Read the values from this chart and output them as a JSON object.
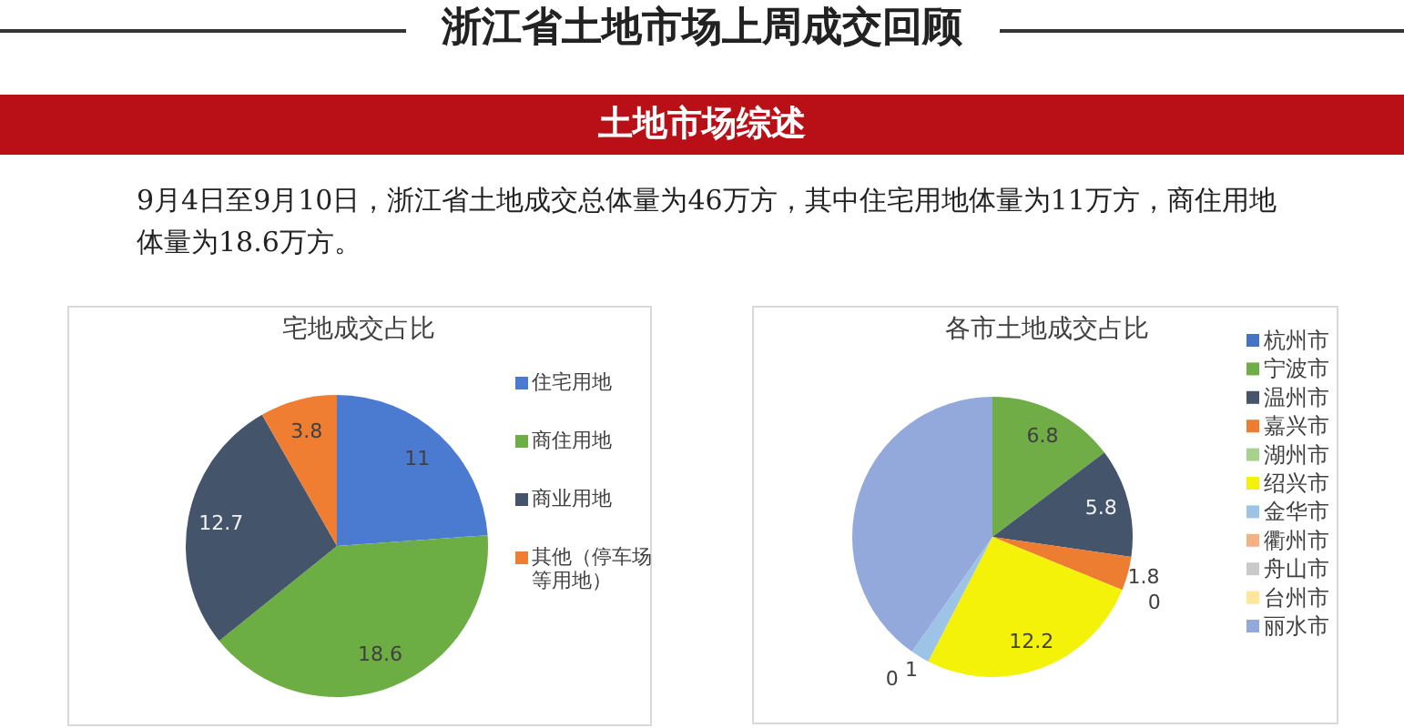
{
  "chart_data": [
    {
      "type": "other",
      "title": "浙江省土地市场上周成交回顾",
      "subtitle": "土地市场综述",
      "annotations": [
        "9月4日至9月10日，浙江省土地成交总体量为46万方，其中住宅用地体量为11万方，商住用地体量为18.6万方。"
      ]
    },
    {
      "type": "pie",
      "title": "宅地成交占比",
      "categories": [
        "住宅用地",
        "商住用地",
        "商业用地",
        "其他（停车场等用地）"
      ],
      "values": [
        11,
        18.6,
        12.7,
        3.8
      ],
      "colors": [
        "#4a7bd0",
        "#6cae44",
        "#44546a",
        "#ef7e33"
      ],
      "data_labels": true,
      "legend": "right"
    },
    {
      "type": "pie",
      "title": "各市土地成交占比",
      "categories": [
        "杭州市",
        "宁波市",
        "温州市",
        "嘉兴市",
        "湖州市",
        "绍兴市",
        "金华市",
        "衢州市",
        "舟山市",
        "台州市",
        "丽水市"
      ],
      "values": [
        0,
        6.8,
        5.8,
        1.8,
        0,
        12.2,
        1,
        0,
        0,
        0,
        18.6
      ],
      "colors": [
        "#4472c4",
        "#70ad47",
        "#44546a",
        "#ed7d31",
        "#a9d18e",
        "#f5f20a",
        "#9dc3e6",
        "#f4b183",
        "#c9c9c9",
        "#ffe699",
        "#93a9dc"
      ],
      "value_labels": [
        null,
        "6.8",
        "5.8",
        "1.8",
        "0",
        "12.2",
        "1",
        "0",
        null,
        null,
        null
      ],
      "legend": "right"
    }
  ]
}
